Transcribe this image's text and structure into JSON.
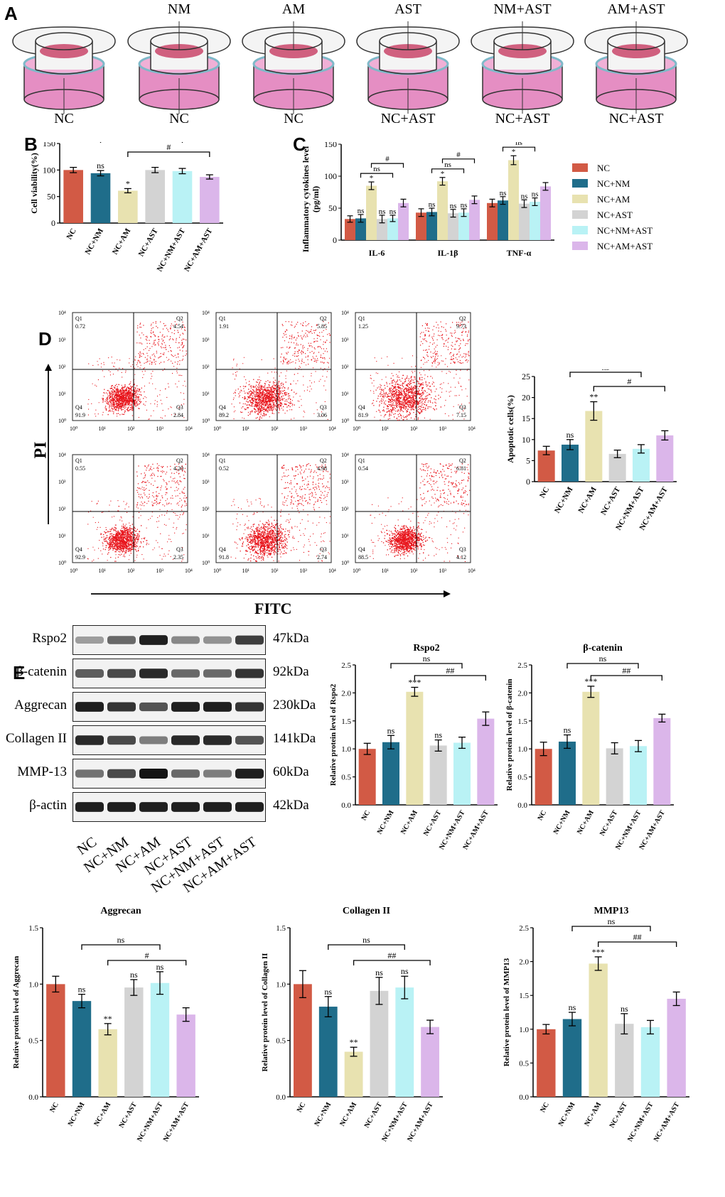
{
  "panels": {
    "A": "A",
    "B": "B",
    "C": "C",
    "D": "D",
    "E": "E"
  },
  "colors": {
    "NC": "#d25a45",
    "NC+NM": "#1f6d8a",
    "NC+AM": "#e8e2b0",
    "NC+AST": "#d3d3d3",
    "NC+NM+AST": "#b9f2f5",
    "NC+AM+AST": "#dbb6ea"
  },
  "groups": [
    "NC",
    "NC+NM",
    "NC+AM",
    "NC+AST",
    "NC+NM+AST",
    "NC+AM+AST"
  ],
  "wells": {
    "top": [
      "",
      "NM",
      "AM",
      "AST",
      "NM+AST",
      "AM+AST"
    ],
    "bottom": [
      "NC",
      "NC",
      "NC",
      "NC+AST",
      "NC+AST",
      "NC+AST"
    ]
  },
  "flow": {
    "y_label": "PI",
    "x_label": "FITC",
    "quad_labels": [
      "Q1",
      "Q2",
      "Q3",
      "Q4"
    ],
    "plots": [
      {
        "q1": "0.72",
        "q2": "4.54",
        "q3": "2.84",
        "q4": "91.9"
      },
      {
        "q1": "1.91",
        "q2": "5.85",
        "q3": "3.06",
        "q4": "89.2"
      },
      {
        "q1": "1.25",
        "q2": "9.73",
        "q3": "7.15",
        "q4": "81.9"
      },
      {
        "q1": "0.55",
        "q2": "4.20",
        "q3": "2.35",
        "q4": "92.9"
      },
      {
        "q1": "0.52",
        "q2": "4.98",
        "q3": "2.74",
        "q4": "91.8"
      },
      {
        "q1": "0.54",
        "q2": "6.81",
        "q3": "4.12",
        "q4": "88.5"
      }
    ],
    "tick_labels": [
      "10⁰",
      "10¹",
      "10²",
      "10³",
      "10⁴"
    ]
  },
  "blot": {
    "rows": [
      {
        "label": "Rspo2",
        "kda": "47kDa"
      },
      {
        "label": "β-catenin",
        "kda": "92kDa"
      },
      {
        "label": "Aggrecan",
        "kda": "230kDa"
      },
      {
        "label": "Collagen II",
        "kda": "141kDa"
      },
      {
        "label": "MMP-13",
        "kda": "60kDa"
      },
      {
        "label": "β-actin",
        "kda": "42kDa"
      }
    ],
    "intensity": [
      [
        0.35,
        0.6,
        0.95,
        0.45,
        0.4,
        0.8
      ],
      [
        0.65,
        0.75,
        0.9,
        0.6,
        0.6,
        0.85
      ],
      [
        0.95,
        0.85,
        0.7,
        0.95,
        0.95,
        0.85
      ],
      [
        0.9,
        0.75,
        0.5,
        0.9,
        0.9,
        0.7
      ],
      [
        0.55,
        0.75,
        1.0,
        0.6,
        0.5,
        0.95
      ],
      [
        0.95,
        0.95,
        0.95,
        0.95,
        0.95,
        0.95
      ]
    ]
  },
  "chart_data": [
    {
      "id": "B",
      "type": "bar",
      "title": "",
      "ylabel": "Cell viability(%)",
      "ylim": [
        0,
        150
      ],
      "yticks": [
        "0",
        "50",
        "100",
        "150"
      ],
      "categories": [
        "NC",
        "NC+NM",
        "NC+AM",
        "NC+AST",
        "NC+NM+AST",
        "NC+AM+AST"
      ],
      "values": [
        100,
        94,
        61,
        100,
        98,
        87
      ],
      "errors": [
        5,
        5,
        4,
        5,
        5,
        4
      ],
      "annotations": [
        "",
        "ns",
        "*",
        "",
        "",
        ""
      ],
      "brackets": [
        {
          "from": 1,
          "to": 4,
          "label": "ns",
          "level": 1
        },
        {
          "from": 2,
          "to": 5,
          "label": "#",
          "level": 0
        }
      ]
    },
    {
      "id": "C",
      "type": "grouped-bar",
      "ylabel": "Inflammatory cytokines level",
      "ylabel2": "(pg/ml)",
      "ylim": [
        0,
        150
      ],
      "yticks": [
        "0",
        "50",
        "100",
        "150"
      ],
      "categories": [
        "IL-6",
        "IL-1β",
        "TNF-α"
      ],
      "series": [
        {
          "name": "NC",
          "values": [
            33,
            43,
            58
          ],
          "errors": [
            5,
            6,
            6
          ]
        },
        {
          "name": "NC+NM",
          "values": [
            34,
            44,
            62
          ],
          "errors": [
            6,
            6,
            6
          ]
        },
        {
          "name": "NC+AM",
          "values": [
            85,
            92,
            125
          ],
          "errors": [
            6,
            6,
            7
          ]
        },
        {
          "name": "NC+AST",
          "values": [
            33,
            42,
            57
          ],
          "errors": [
            6,
            6,
            6
          ]
        },
        {
          "name": "NC+NM+AST",
          "values": [
            34,
            43,
            60
          ],
          "errors": [
            5,
            6,
            6
          ]
        },
        {
          "name": "NC+AM+AST",
          "values": [
            58,
            63,
            84
          ],
          "errors": [
            6,
            6,
            6
          ]
        }
      ],
      "annotations": [
        "",
        "ns",
        "*",
        "ns",
        "ns",
        ""
      ],
      "bracket_labels": {
        "ns": "ns",
        "hash": "#"
      }
    },
    {
      "id": "D",
      "type": "bar",
      "title": "",
      "ylabel": "Apoptotic cells(%)",
      "ylim": [
        0,
        25
      ],
      "yticks": [
        "0",
        "5",
        "10",
        "15",
        "20",
        "25"
      ],
      "categories": [
        "NC",
        "NC+NM",
        "NC+AM",
        "NC+AST",
        "NC+NM+AST",
        "NC+AM+AST"
      ],
      "values": [
        7.4,
        8.8,
        16.8,
        6.6,
        7.8,
        11
      ],
      "errors": [
        1.0,
        1.2,
        2.2,
        0.9,
        1.0,
        1.1
      ],
      "annotations": [
        "",
        "ns",
        "**",
        "",
        "",
        ""
      ],
      "brackets": [
        {
          "from": 1,
          "to": 4,
          "label": "ns",
          "level": 1
        },
        {
          "from": 2,
          "to": 5,
          "label": "#",
          "level": 0
        }
      ]
    },
    {
      "id": "Rspo2",
      "type": "bar",
      "title": "Rspo2",
      "ylabel": "Relative protein level of Rspo2",
      "ylim": [
        0,
        2.5
      ],
      "yticks": [
        "0.0",
        "0.5",
        "1.0",
        "1.5",
        "2.0",
        "2.5"
      ],
      "categories": [
        "NC",
        "NC+NM",
        "NC+AM",
        "NC+AST",
        "NC+NM+AST",
        "NC+AM+AST"
      ],
      "values": [
        1.0,
        1.12,
        2.02,
        1.06,
        1.11,
        1.54
      ],
      "errors": [
        0.1,
        0.12,
        0.08,
        0.1,
        0.1,
        0.12
      ],
      "annotations": [
        "",
        "ns",
        "***",
        "ns",
        "",
        ""
      ],
      "brackets": [
        {
          "from": 1,
          "to": 4,
          "label": "ns",
          "level": 1
        },
        {
          "from": 2,
          "to": 5,
          "label": "##",
          "level": 0
        }
      ]
    },
    {
      "id": "bcat",
      "type": "bar",
      "title": "β-catenin",
      "ylabel": "Relative protein level of β-catenin",
      "ylim": [
        0,
        2.5
      ],
      "yticks": [
        "0.0",
        "0.5",
        "1.0",
        "1.5",
        "2.0",
        "2.5"
      ],
      "categories": [
        "NC",
        "NC+NM",
        "NC+AM",
        "NC+AST",
        "NC+NM+AST",
        "NC+AM+AST"
      ],
      "values": [
        1.0,
        1.13,
        2.02,
        1.01,
        1.05,
        1.55
      ],
      "errors": [
        0.12,
        0.12,
        0.1,
        0.1,
        0.1,
        0.07
      ],
      "annotations": [
        "",
        "ns",
        "***",
        "",
        "",
        ""
      ],
      "brackets": [
        {
          "from": 1,
          "to": 4,
          "label": "ns",
          "level": 1
        },
        {
          "from": 2,
          "to": 5,
          "label": "##",
          "level": 0
        }
      ]
    },
    {
      "id": "Aggrecan",
      "type": "bar",
      "title": "Aggrecan",
      "ylabel": "Relative protein level of Aggrecan",
      "ylim": [
        0,
        1.5
      ],
      "yticks": [
        "0.0",
        "0.5",
        "1.0",
        "1.5"
      ],
      "categories": [
        "NC",
        "NC+NM",
        "NC+AM",
        "NC+AST",
        "NC+NM+AST",
        "NC+AM+AST"
      ],
      "values": [
        1.0,
        0.85,
        0.6,
        0.97,
        1.01,
        0.73
      ],
      "errors": [
        0.07,
        0.06,
        0.05,
        0.07,
        0.1,
        0.06
      ],
      "annotations": [
        "",
        "ns",
        "**",
        "ns",
        "ns",
        ""
      ],
      "brackets": [
        {
          "from": 1,
          "to": 4,
          "label": "ns",
          "level": 1
        },
        {
          "from": 2,
          "to": 5,
          "label": "#",
          "level": 0
        }
      ]
    },
    {
      "id": "Collagen",
      "type": "bar",
      "title": "Collagen II",
      "ylabel": "Relative protein level of Collagen II",
      "ylim": [
        0,
        1.5
      ],
      "yticks": [
        "0.0",
        "0.5",
        "1.0",
        "1.5"
      ],
      "categories": [
        "NC",
        "NC+NM",
        "NC+AM",
        "NC+AST",
        "NC+NM+AST",
        "NC+AM+AST"
      ],
      "values": [
        1.0,
        0.8,
        0.4,
        0.94,
        0.97,
        0.62
      ],
      "errors": [
        0.12,
        0.09,
        0.04,
        0.12,
        0.1,
        0.06
      ],
      "annotations": [
        "",
        "ns",
        "**",
        "ns",
        "ns",
        ""
      ],
      "brackets": [
        {
          "from": 1,
          "to": 4,
          "label": "ns",
          "level": 1
        },
        {
          "from": 2,
          "to": 5,
          "label": "##",
          "level": 0
        }
      ]
    },
    {
      "id": "MMP13",
      "type": "bar",
      "title": "MMP13",
      "ylabel": "Relative protein level of MMP13",
      "ylim": [
        0,
        2.5
      ],
      "yticks": [
        "0.0",
        "0.5",
        "1.0",
        "1.5",
        "2.0",
        "2.5"
      ],
      "categories": [
        "NC",
        "NC+NM",
        "NC+AM",
        "NC+AST",
        "NC+NM+AST",
        "NC+AM+AST"
      ],
      "values": [
        1.0,
        1.15,
        1.97,
        1.08,
        1.03,
        1.45
      ],
      "errors": [
        0.07,
        0.1,
        0.1,
        0.15,
        0.1,
        0.1
      ],
      "annotations": [
        "",
        "ns",
        "***",
        "ns",
        "",
        ""
      ],
      "brackets": [
        {
          "from": 1,
          "to": 4,
          "label": "ns",
          "level": 1
        },
        {
          "from": 2,
          "to": 5,
          "label": "##",
          "level": 0
        }
      ]
    }
  ]
}
